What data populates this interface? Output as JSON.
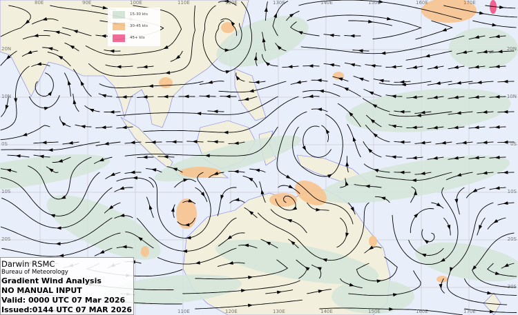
{
  "colors": {
    "ocean": "#e9eefb",
    "land": "#f2f0dc",
    "band_15_30": "#d3e5d8",
    "band_30_45": "#f7c38e",
    "band_45_plus": "#f06292",
    "coast": "#7b7bf0",
    "streamline": "#000000"
  },
  "legend": [
    {
      "label": "15-30 kts",
      "color": "#d3e5d8"
    },
    {
      "label": "30-45 kts",
      "color": "#f7c38e"
    },
    {
      "label": "45+ kts",
      "color": "#f06292"
    }
  ],
  "info": {
    "office": "Darwin RSMC",
    "agency": "Bureau of Meteorology",
    "product": "Gradient Wind Analysis",
    "note": "NO MANUAL INPUT",
    "valid": "Valid:   0000 UTC 07 Mar 2026",
    "issued": "Issued:0144 UTC 07 MAR 2026"
  },
  "lon_labels": [
    "80E",
    "90E",
    "100E",
    "110E",
    "120E",
    "130E",
    "140E",
    "150E",
    "160E",
    "170E"
  ],
  "lat_labels": [
    "20N",
    "10N",
    "0S",
    "10S",
    "20S",
    "30S"
  ]
}
